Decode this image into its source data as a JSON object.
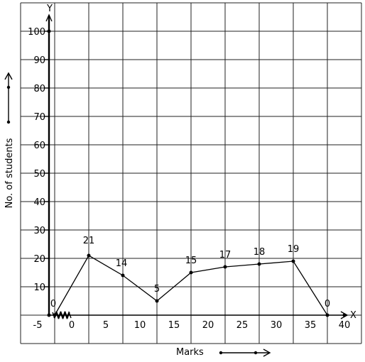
{
  "chart_data": {
    "type": "line",
    "title": "",
    "xlabel": "Marks",
    "ylabel": "No. of students",
    "x_axis_letter": "X",
    "y_axis_letter": "Y",
    "xlim": [
      -7.5,
      42.5
    ],
    "ylim": [
      -10,
      110
    ],
    "grid": true,
    "x_tick_labels": [
      {
        "x": -5,
        "label": "-5"
      },
      {
        "x": 0,
        "label": "0"
      },
      {
        "x": 5,
        "label": "5"
      },
      {
        "x": 10,
        "label": "10"
      },
      {
        "x": 15,
        "label": "15"
      },
      {
        "x": 20,
        "label": "20"
      },
      {
        "x": 25,
        "label": "25"
      },
      {
        "x": 30,
        "label": "30"
      },
      {
        "x": 35,
        "label": "35"
      },
      {
        "x": 40,
        "label": "40"
      }
    ],
    "y_tick_labels": [
      {
        "y": 10,
        "label": "10"
      },
      {
        "y": 20,
        "label": "20"
      },
      {
        "y": 30,
        "label": "30"
      },
      {
        "y": 40,
        "label": "40"
      },
      {
        "y": 50,
        "label": "50"
      },
      {
        "y": 60,
        "label": "60"
      },
      {
        "y": 70,
        "label": "70"
      },
      {
        "y": 80,
        "label": "80"
      },
      {
        "y": 90,
        "label": "90"
      },
      {
        "y": 100,
        "label": "100"
      }
    ],
    "series": [
      {
        "points": [
          {
            "x": -2.5,
            "y": 0,
            "label": "0"
          },
          {
            "x": 2.5,
            "y": 21,
            "label": "21"
          },
          {
            "x": 7.5,
            "y": 14,
            "label": "14"
          },
          {
            "x": 12.5,
            "y": 5,
            "label": "5"
          },
          {
            "x": 17.5,
            "y": 15,
            "label": "15"
          },
          {
            "x": 22.5,
            "y": 17,
            "label": "17"
          },
          {
            "x": 27.5,
            "y": 18,
            "label": "18"
          },
          {
            "x": 32.5,
            "y": 19,
            "label": "19"
          },
          {
            "x": 37.5,
            "y": 0,
            "label": "0"
          }
        ]
      }
    ]
  }
}
